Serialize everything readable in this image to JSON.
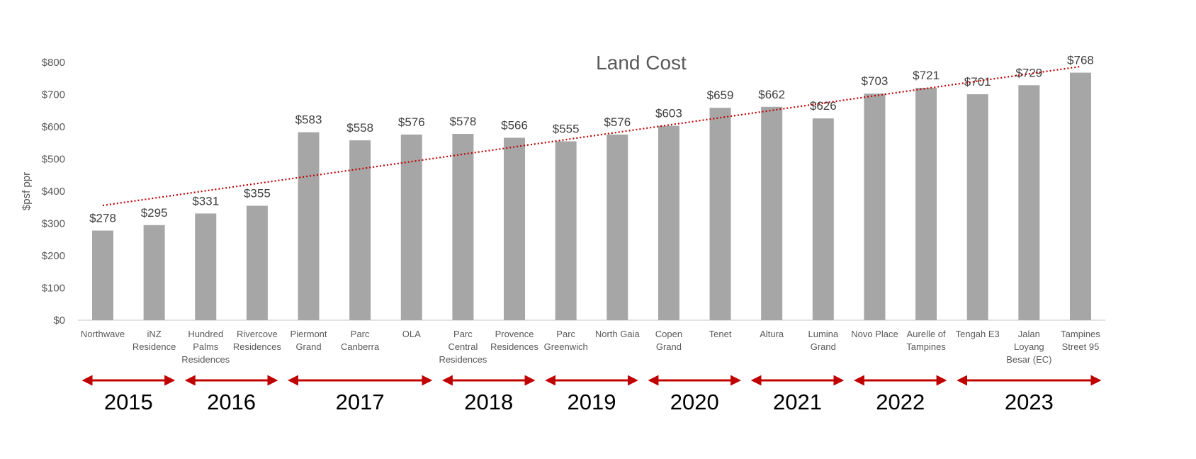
{
  "chart_data": {
    "type": "bar",
    "title": "Land Cost",
    "xlabel": "",
    "ylabel": "$psf ppr",
    "ylim": [
      0,
      800
    ],
    "yticks": [
      "$0",
      "$100",
      "$200",
      "$300",
      "$400",
      "$500",
      "$600",
      "$700",
      "$800"
    ],
    "ytick_values": [
      0,
      100,
      200,
      300,
      400,
      500,
      600,
      700,
      800
    ],
    "grid": false,
    "categories": [
      [
        "Northwave"
      ],
      [
        "iNZ",
        "Residence"
      ],
      [
        "Hundred",
        "Palms",
        "Residences"
      ],
      [
        "Rivercove",
        "Residences"
      ],
      [
        "Piermont",
        "Grand"
      ],
      [
        "Parc",
        "Canberra"
      ],
      [
        "OLA"
      ],
      [
        "Parc",
        "Central",
        "Residences"
      ],
      [
        "Provence",
        "Residences"
      ],
      [
        "Parc",
        "Greenwich"
      ],
      [
        "North Gaia"
      ],
      [
        "Copen",
        "Grand"
      ],
      [
        "Tenet"
      ],
      [
        "Altura"
      ],
      [
        "Lumina",
        "Grand"
      ],
      [
        "Novo Place"
      ],
      [
        "Aurelle of",
        "Tampines"
      ],
      [
        "Tengah E3"
      ],
      [
        "Jalan",
        "Loyang",
        "Besar (EC)"
      ],
      [
        "Tampines",
        "Street 95"
      ]
    ],
    "values": [
      278,
      295,
      331,
      355,
      583,
      558,
      576,
      578,
      566,
      555,
      576,
      603,
      659,
      662,
      626,
      703,
      721,
      701,
      729,
      768
    ],
    "data_labels": [
      "$278",
      "$295",
      "$331",
      "$355",
      "$583",
      "$558",
      "$576",
      "$578",
      "$566",
      "$555",
      "$576",
      "$603",
      "$659",
      "$662",
      "$626",
      "$703",
      "$721",
      "$701",
      "$729",
      "$768"
    ],
    "bar_color": "#a6a6a6",
    "trendline": {
      "type": "linear",
      "style": "dotted",
      "color": "#c00000",
      "start_value": 356,
      "end_value": 787
    },
    "year_groups": [
      {
        "label": "2015",
        "from": 0,
        "to": 1
      },
      {
        "label": "2016",
        "from": 2,
        "to": 3
      },
      {
        "label": "2017",
        "from": 4,
        "to": 6
      },
      {
        "label": "2018",
        "from": 7,
        "to": 8
      },
      {
        "label": "2019",
        "from": 9,
        "to": 10
      },
      {
        "label": "2020",
        "from": 11,
        "to": 12
      },
      {
        "label": "2021",
        "from": 13,
        "to": 14
      },
      {
        "label": "2022",
        "from": 15,
        "to": 16
      },
      {
        "label": "2023",
        "from": 17,
        "to": 19
      }
    ],
    "arrow_color": "#c00000"
  }
}
